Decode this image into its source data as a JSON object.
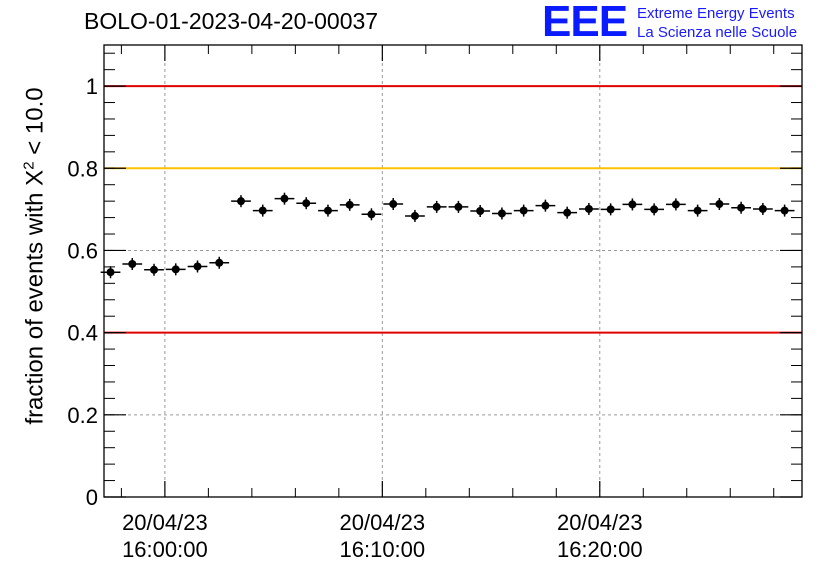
{
  "header": {
    "title": "BOLO-01-2023-04-20-00037",
    "logo": "EEE",
    "logo_line1": "Extreme Energy Events",
    "logo_line2": "La Scienza nelle Scuole"
  },
  "chart_data": {
    "type": "scatter",
    "ylabel": "fraction of events with X² < 10.0",
    "ylabel_prefix": "fraction of events with X",
    "ylabel_sup": "2",
    "ylabel_suffix": " < 10.0",
    "xlabel": "",
    "ylim": [
      0,
      1.1
    ],
    "xlim_minutes": [
      -2.8,
      29.3
    ],
    "grid": true,
    "x_ticks": [
      {
        "minute": 0,
        "date": "20/04/23",
        "time": "16:00:00"
      },
      {
        "minute": 10,
        "date": "20/04/23",
        "time": "16:10:00"
      },
      {
        "minute": 20,
        "date": "20/04/23",
        "time": "16:20:00"
      }
    ],
    "y_ticks": [
      {
        "value": 0,
        "label": "0"
      },
      {
        "value": 0.2,
        "label": "0.2"
      },
      {
        "value": 0.4,
        "label": "0.4"
      },
      {
        "value": 0.6,
        "label": "0.6"
      },
      {
        "value": 0.8,
        "label": "0.8"
      },
      {
        "value": 1,
        "label": "1"
      }
    ],
    "reference_lines": [
      {
        "y": 1.0,
        "color": "#e00000"
      },
      {
        "y": 0.8,
        "color": "#ffc000"
      },
      {
        "y": 0.4,
        "color": "#e00000"
      }
    ],
    "series": [
      {
        "color": "#000000",
        "x_minutes": [
          -2.5,
          -1.5,
          -0.5,
          0.5,
          1.5,
          2.5,
          3.5,
          4.5,
          5.5,
          6.5,
          7.5,
          8.5,
          9.5,
          10.5,
          11.5,
          12.5,
          13.5,
          14.5,
          15.5,
          16.5,
          17.5,
          18.5,
          19.5,
          20.5,
          21.5,
          22.5,
          23.5,
          24.5,
          25.5,
          26.5,
          27.5,
          28.5
        ],
        "y": [
          0.547,
          0.567,
          0.553,
          0.554,
          0.561,
          0.57,
          0.72,
          0.697,
          0.726,
          0.715,
          0.697,
          0.711,
          0.688,
          0.713,
          0.684,
          0.706,
          0.706,
          0.696,
          0.69,
          0.697,
          0.709,
          0.692,
          0.701,
          0.7,
          0.712,
          0.7,
          0.712,
          0.697,
          0.713,
          0.704,
          0.701,
          0.697
        ]
      }
    ]
  }
}
